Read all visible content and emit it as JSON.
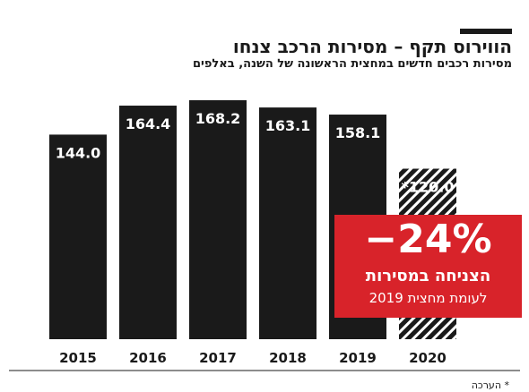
{
  "title": "הווירוס תקף – מסירות הרכב צנחו",
  "subtitle": "מסירות רכבים חדשים במחצית הראשונה של השנה, באלפים",
  "badge": {
    "percent": "−24%",
    "line1": "הצניחה במסירות",
    "line2": "לעומת מחצית 2019"
  },
  "footnote": "* הערכה",
  "colors": {
    "bar": "#1a1a1a",
    "accent": "#d8232a",
    "background": "#ffffff"
  },
  "chart_data": {
    "type": "bar",
    "categories": [
      "2015",
      "2016",
      "2017",
      "2018",
      "2019",
      "2020"
    ],
    "values": [
      144.0,
      164.4,
      168.2,
      163.1,
      158.1,
      120.0
    ],
    "labels": [
      "144.0",
      "164.4",
      "168.2",
      "163.1",
      "158.1",
      "*120.0"
    ],
    "estimated": [
      false,
      false,
      false,
      false,
      false,
      true
    ],
    "ylim": [
      0,
      180
    ],
    "grid": false,
    "legend": "none"
  }
}
